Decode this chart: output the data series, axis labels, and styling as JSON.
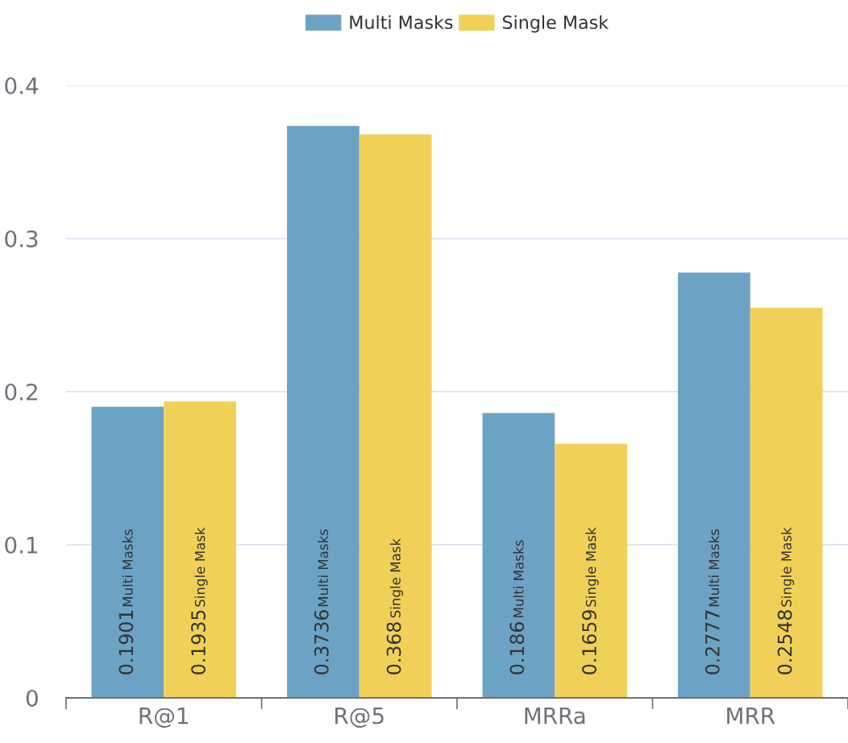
{
  "chart_data": {
    "type": "bar",
    "categories": [
      "R@1",
      "R@5",
      "MRRa",
      "MRR"
    ],
    "series": [
      {
        "name": "Multi Masks",
        "color": "#6ca3c5",
        "values": [
          0.1901,
          0.3736,
          0.186,
          0.2777
        ]
      },
      {
        "name": "Single Mask",
        "color": "#f1d057",
        "values": [
          0.1935,
          0.368,
          0.1659,
          0.2548
        ]
      }
    ],
    "ylim": [
      0,
      0.4
    ],
    "yticks": [
      0,
      0.1,
      0.2,
      0.3,
      0.4
    ],
    "grid": "y",
    "legend": "top",
    "data_labels": true
  }
}
